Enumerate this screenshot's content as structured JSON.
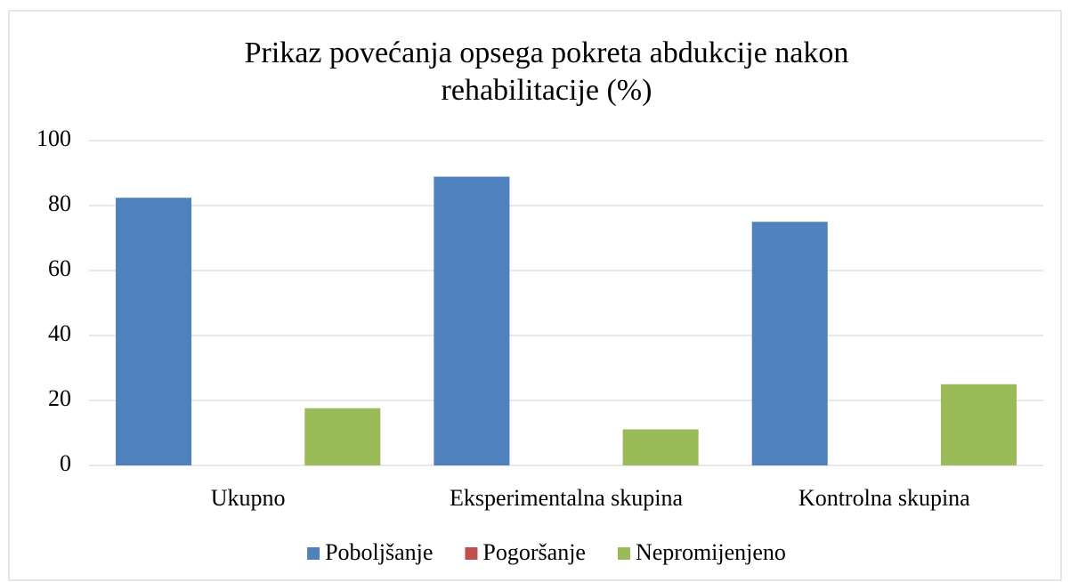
{
  "chart_data": {
    "type": "bar",
    "title": [
      "Prikaz povećanja opsega pokreta abdukcije nakon",
      "rehabilitacije (%)"
    ],
    "categories": [
      "Ukupno",
      "Eksperimentalna skupina",
      "Kontrolna skupina"
    ],
    "series": [
      {
        "name": "Poboljšanje",
        "color": "#4f81bd",
        "values": [
          82.4,
          88.9,
          75
        ]
      },
      {
        "name": "Pogoršanje",
        "color": "#c0504d",
        "values": [
          0,
          0,
          0
        ]
      },
      {
        "name": "Nepromijenjeno",
        "color": "#9bbb59",
        "values": [
          17.6,
          11.1,
          25
        ]
      }
    ],
    "ylim": [
      0,
      100
    ],
    "yticks": [
      0,
      20,
      40,
      60,
      80,
      100
    ],
    "grid": true,
    "legend": "bottom"
  }
}
